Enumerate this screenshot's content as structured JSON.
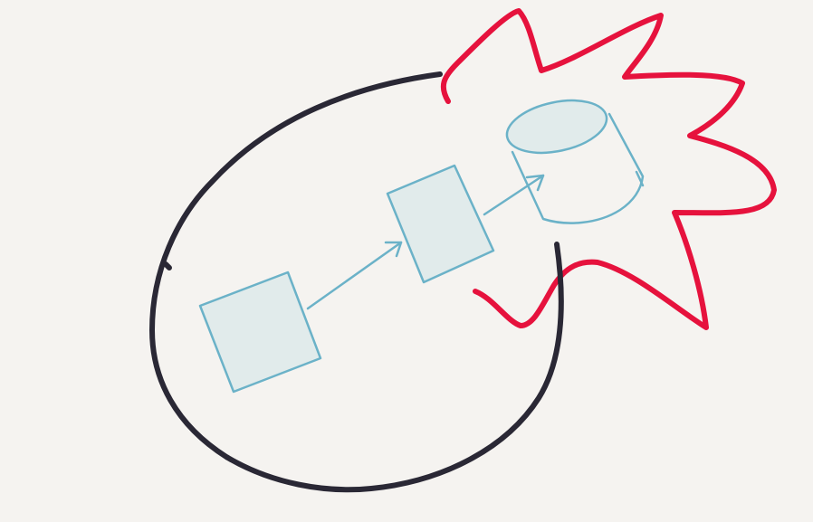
{
  "canvas": {
    "background": "#f5f3f0"
  },
  "colors": {
    "ink_dark": "#2a2835",
    "accent_red": "#e6123d",
    "stroke_blue": "#6bb2c8",
    "fill_blue": "#e1ebeb"
  },
  "diagram": {
    "nodes": [
      {
        "name": "box-left",
        "shape": "rectangle"
      },
      {
        "name": "box-middle",
        "shape": "rectangle"
      },
      {
        "name": "database",
        "shape": "cylinder"
      }
    ],
    "edges": [
      {
        "from": "box-left",
        "to": "box-middle",
        "style": "arrow"
      },
      {
        "from": "box-middle",
        "to": "database",
        "style": "arrow"
      }
    ],
    "annotations": [
      {
        "name": "enclosing-loop",
        "shape": "hand-drawn-loop",
        "color": "ink_dark"
      },
      {
        "name": "starburst",
        "shape": "hand-drawn-starburst",
        "color": "accent_red"
      }
    ]
  }
}
